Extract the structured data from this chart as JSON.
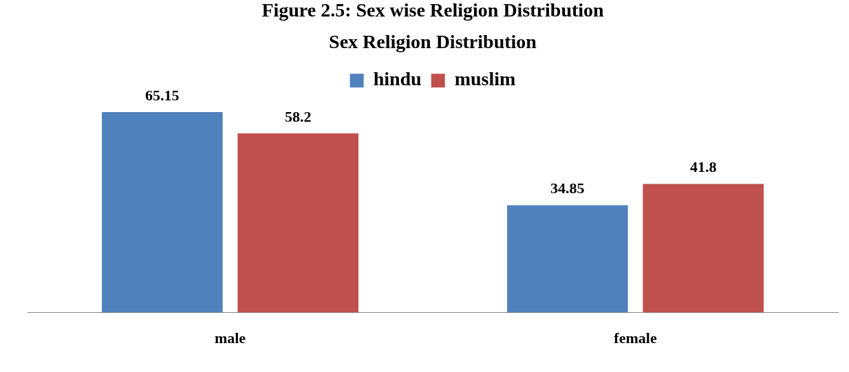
{
  "chart_data": {
    "type": "bar",
    "title": "Figure 2.5: Sex wise Religion Distribution",
    "subtitle": "Sex Religion Distribution",
    "categories": [
      "male",
      "female"
    ],
    "series": [
      {
        "name": "hindu",
        "color": "#4f81bd",
        "values": [
          65.15,
          34.85
        ]
      },
      {
        "name": "muslim",
        "color": "#c0504d",
        "values": [
          58.2,
          41.8
        ]
      }
    ],
    "data_labels": true,
    "legend": "top",
    "grid": false
  }
}
